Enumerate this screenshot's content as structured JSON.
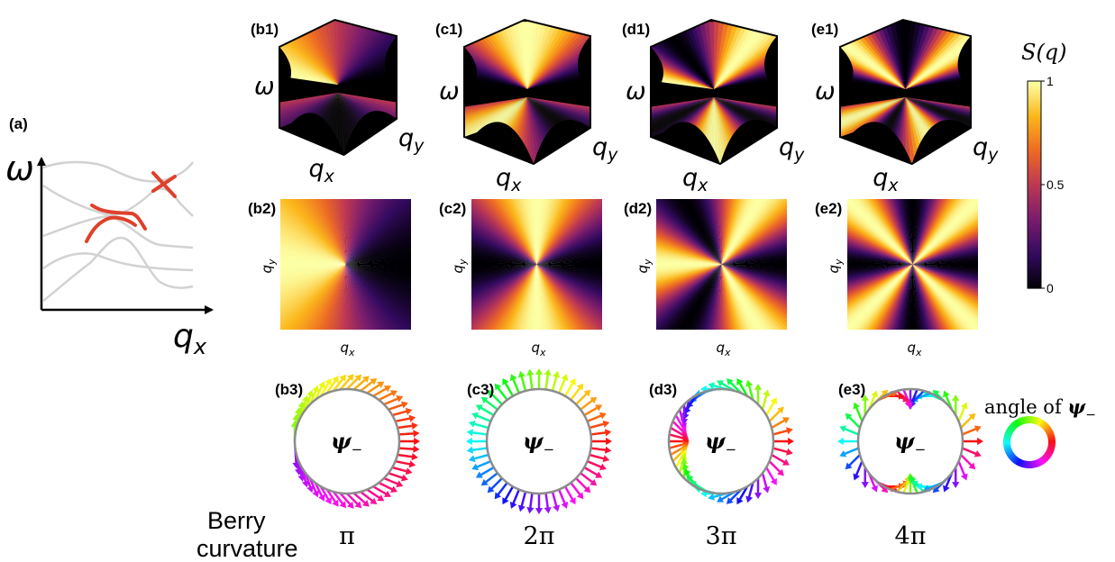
{
  "panel_a": {
    "label": "(a)",
    "y_axis": "ω",
    "x_axis": "q",
    "x_axis_sub": "x"
  },
  "row1": [
    {
      "label": "(b1)",
      "omega": "ω",
      "qx": "q",
      "qx_sub": "x",
      "qy": "q",
      "qy_sub": "y",
      "m": 1
    },
    {
      "label": "(c1)",
      "omega": "ω",
      "qx": "q",
      "qx_sub": "x",
      "qy": "q",
      "qy_sub": "y",
      "m": 2
    },
    {
      "label": "(d1)",
      "omega": "ω",
      "qx": "q",
      "qx_sub": "x",
      "qy": "q",
      "qy_sub": "y",
      "m": 3
    },
    {
      "label": "(e1)",
      "omega": "ω",
      "qx": "q",
      "qx_sub": "x",
      "qy": "q",
      "qy_sub": "y",
      "m": 4
    }
  ],
  "row2": [
    {
      "label": "(b2)",
      "xlabel": "q",
      "xlabel_sub": "x",
      "ylabel": "q",
      "ylabel_sub": "y",
      "m": 1
    },
    {
      "label": "(c2)",
      "xlabel": "q",
      "xlabel_sub": "x",
      "ylabel": "q",
      "ylabel_sub": "y",
      "m": 2
    },
    {
      "label": "(d2)",
      "xlabel": "q",
      "xlabel_sub": "x",
      "ylabel": "q",
      "ylabel_sub": "y",
      "m": 3
    },
    {
      "label": "(e2)",
      "xlabel": "q",
      "xlabel_sub": "x",
      "ylabel": "q",
      "ylabel_sub": "y",
      "m": 4
    }
  ],
  "row3": [
    {
      "label": "(b3)",
      "center": "ψ",
      "center_sub": "−",
      "winding": 1
    },
    {
      "label": "(c3)",
      "center": "ψ",
      "center_sub": "−",
      "winding": 2
    },
    {
      "label": "(d3)",
      "center": "ψ",
      "center_sub": "−",
      "winding": 3
    },
    {
      "label": "(e3)",
      "center": "ψ",
      "center_sub": "−",
      "winding": 4
    }
  ],
  "colorbar": {
    "title": "S(q)",
    "ticks": [
      "1",
      "0.5",
      "0"
    ],
    "colors": [
      "#000004",
      "#320a5e",
      "#781c6d",
      "#bb3754",
      "#ed6925",
      "#fbb61a",
      "#fcffa4"
    ]
  },
  "angle_legend": {
    "label_prefix": "angle of",
    "symbol": "ψ",
    "symbol_sub": "−"
  },
  "berry": {
    "label_line1": "Berry",
    "label_line2": "curvature",
    "values": [
      "π",
      "2π",
      "3π",
      "4π"
    ]
  },
  "colors": {
    "band_gray": "#d2d2d2",
    "crossing_red": "#e0402a",
    "ring_gray": "#8c8c8c"
  }
}
